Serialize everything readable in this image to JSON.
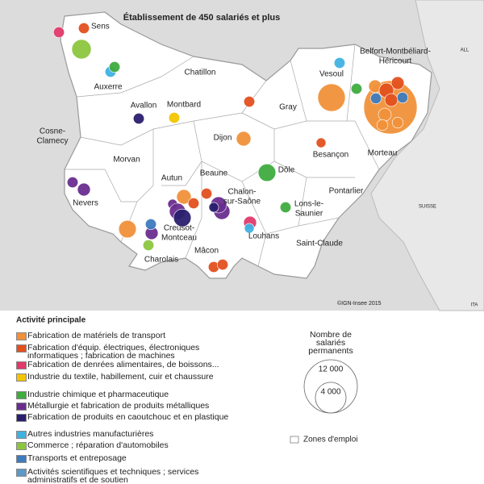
{
  "title": "Établissement de 450 salariés et plus",
  "credit": "©IGN-Insee 2015",
  "places": [
    [
      "Sens"
    ],
    [
      "Auxerre"
    ],
    [
      "Chatillon"
    ],
    [
      "Avallon"
    ],
    [
      "Montbard"
    ],
    [
      "Cosne-",
      "Clamecy"
    ],
    [
      "Morvan"
    ],
    [
      "Dijon"
    ],
    [
      "Gray"
    ],
    [
      "Vesoul"
    ],
    [
      "Belfort-Montbéliard-",
      "Héricourt"
    ],
    [
      "Besançon"
    ],
    [
      "Morteau"
    ],
    [
      "Dôle"
    ],
    [
      "Beaune"
    ],
    [
      "Autun"
    ],
    [
      "Chalon-",
      "sur-Saône"
    ],
    [
      "Nevers"
    ],
    [
      "Lons-le-",
      "Saunier"
    ],
    [
      "Pontarlier"
    ],
    [
      "Creusot-",
      "Montceau"
    ],
    [
      "Louhans"
    ],
    [
      "Saint-Claude"
    ],
    [
      "Charolais"
    ],
    [
      "Mâcon"
    ]
  ],
  "neighbours": [
    "ALL",
    "SUISSE",
    "ITA"
  ],
  "legend": {
    "title": "Activité principale",
    "activities": [
      {
        "name": "Fabrication de matériels de transport",
        "color": "#f0913a"
      },
      {
        "name": "Fabrication d'équip. électriques, électroniques informatiques ; fabrication de machines",
        "color": "#e3501e"
      },
      {
        "name": "Fabrication de denrées alimentaires, de boissons...",
        "color": "#e23a6a"
      },
      {
        "name": "Industrie du textile, habillement, cuir et chaussure",
        "color": "#f2c500"
      },
      {
        "name": "Industrie chimique et pharmaceutique",
        "color": "#3fac3f"
      },
      {
        "name": "Métallurgie et fabrication de produits métalliques",
        "color": "#6a2d8f"
      },
      {
        "name": "Fabrication de produits en caoutchouc et en plastique",
        "color": "#2a1f6e"
      },
      {
        "name": "Autres industries manufacturières",
        "color": "#3fb2e2"
      },
      {
        "name": "Commerce ; réparation d'automobiles",
        "color": "#8cc63f"
      },
      {
        "name": "Transports et entreposage",
        "color": "#3e7bbf"
      },
      {
        "name": "Activités scientifiques et techniques ; services administratifs et de soutien",
        "color": "#5d99c6"
      }
    ],
    "size_title": "Nombre de salariés permanents",
    "sizes": [
      {
        "value": 12000,
        "label": "12 000"
      },
      {
        "value": 4000,
        "label": "4 000"
      }
    ],
    "zones": "Zones d'emploi"
  },
  "establishments": [
    {
      "activity": 2,
      "employees": 500
    },
    {
      "activity": 1,
      "employees": 500
    },
    {
      "activity": 8,
      "employees": 1600
    },
    {
      "activity": 7,
      "employees": 500
    },
    {
      "activity": 4,
      "employees": 500
    },
    {
      "activity": 6,
      "employees": 500
    },
    {
      "activity": 3,
      "employees": 500
    },
    {
      "activity": 1,
      "employees": 500
    },
    {
      "activity": 0,
      "employees": 900
    },
    {
      "activity": 1,
      "employees": 400
    },
    {
      "activity": 0,
      "employees": 3200
    },
    {
      "activity": 7,
      "employees": 500
    },
    {
      "activity": 4,
      "employees": 500
    },
    {
      "activity": 0,
      "employees": 12000
    },
    {
      "activity": 0,
      "employees": 700
    },
    {
      "activity": 1,
      "employees": 700
    },
    {
      "activity": 1,
      "employees": 900
    },
    {
      "activity": 1,
      "employees": 700
    },
    {
      "activity": 9,
      "employees": 500
    },
    {
      "activity": 9,
      "employees": 500
    },
    {
      "activity": 0,
      "employees": 700
    },
    {
      "activity": 0,
      "employees": 500
    },
    {
      "activity": 0,
      "employees": 500
    },
    {
      "activity": 4,
      "employees": 1300
    },
    {
      "activity": 4,
      "employees": 500
    },
    {
      "activity": 5,
      "employees": 500
    },
    {
      "activity": 5,
      "employees": 700
    },
    {
      "activity": 0,
      "employees": 900
    },
    {
      "activity": 1,
      "employees": 500
    },
    {
      "activity": 5,
      "employees": 400
    },
    {
      "activity": 5,
      "employees": 1100
    },
    {
      "activity": 6,
      "employees": 1300
    },
    {
      "activity": 5,
      "employees": 1100
    },
    {
      "activity": 5,
      "employees": 1100
    },
    {
      "activity": 6,
      "employees": 400
    },
    {
      "activity": 1,
      "employees": 500
    },
    {
      "activity": 2,
      "employees": 700
    },
    {
      "activity": 7,
      "employees": 400
    },
    {
      "activity": 0,
      "employees": 1300
    },
    {
      "activity": 5,
      "employees": 700
    },
    {
      "activity": 9,
      "employees": 500
    },
    {
      "activity": 8,
      "employees": 500
    },
    {
      "activity": 1,
      "employees": 500
    },
    {
      "activity": 1,
      "employees": 500
    }
  ]
}
